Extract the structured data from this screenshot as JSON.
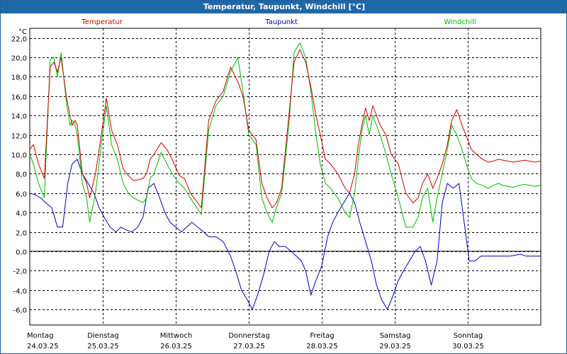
{
  "window": {
    "title": "Temperatur, Taupunkt, Windchill [°C]"
  },
  "chart_data": {
    "type": "line",
    "title": "Temperatur, Taupunkt, Windchill [°C]",
    "ylabel": "°C",
    "ylim": [
      -7.6,
      23
    ],
    "yticks": [
      "22,0",
      "20,0",
      "18,0",
      "16,0",
      "14,0",
      "12,0",
      "10,0",
      "8,0",
      "6,0",
      "4,0",
      "2,0",
      "0,0",
      "-2,0",
      "-4,0",
      "-6,0"
    ],
    "ytick_values": [
      22,
      20,
      18,
      16,
      14,
      12,
      10,
      8,
      6,
      4,
      2,
      0,
      -2,
      -4,
      -6
    ],
    "xlim": [
      0,
      7
    ],
    "days": [
      {
        "weekday": "Montag",
        "date": "24.03.25"
      },
      {
        "weekday": "Dienstag",
        "date": "25.03.25"
      },
      {
        "weekday": "Mittwoch",
        "date": "26.03.25"
      },
      {
        "weekday": "Donnerstag",
        "date": "27.03.25"
      },
      {
        "weekday": "Freitag",
        "date": "28.03.25"
      },
      {
        "weekday": "Samstag",
        "date": "29.03.25"
      },
      {
        "weekday": "Sonntag",
        "date": "30.03.25"
      }
    ],
    "grid": true,
    "legend_position": "top",
    "series": [
      {
        "name": "Temperatur",
        "color": "#cc0000",
        "x": [
          0,
          0.05,
          0.12,
          0.2,
          0.28,
          0.33,
          0.38,
          0.43,
          0.5,
          0.55,
          0.58,
          0.62,
          0.65,
          0.68,
          0.72,
          0.78,
          0.82,
          0.9,
          0.98,
          1.05,
          1.12,
          1.2,
          1.28,
          1.35,
          1.42,
          1.5,
          1.55,
          1.6,
          1.65,
          1.7,
          1.8,
          1.88,
          1.95,
          2.05,
          2.12,
          2.2,
          2.35,
          2.45,
          2.55,
          2.65,
          2.75,
          2.85,
          2.92,
          3.0,
          3.1,
          3.18,
          3.25,
          3.32,
          3.38,
          3.45,
          3.55,
          3.62,
          3.7,
          3.78,
          3.85,
          3.92,
          3.98,
          4.05,
          4.12,
          4.22,
          4.32,
          4.38,
          4.45,
          4.5,
          4.55,
          4.6,
          4.65,
          4.7,
          4.8,
          4.88,
          4.95,
          5.05,
          5.15,
          5.25,
          5.32,
          5.38,
          5.45,
          5.52,
          5.58,
          5.65,
          5.72,
          5.78,
          5.85,
          5.92,
          6.0,
          6.05,
          6.12,
          6.2,
          6.28,
          6.35,
          6.42,
          6.48,
          6.55,
          6.62,
          6.7,
          6.78,
          6.85,
          6.92,
          7.0
        ],
        "y": [
          10.5,
          11.0,
          9.0,
          7.5,
          19.0,
          19.5,
          18.5,
          20.0,
          16.0,
          14.0,
          13.0,
          13.5,
          13.0,
          11.0,
          8.0,
          7.0,
          5.5,
          8.0,
          12.0,
          15.8,
          12.5,
          11.0,
          8.5,
          7.8,
          7.3,
          7.4,
          7.5,
          8.0,
          9.5,
          10.0,
          11.2,
          10.5,
          9.5,
          7.8,
          7.5,
          6.0,
          4.5,
          13.5,
          15.5,
          16.5,
          19.0,
          17.5,
          16.0,
          12.5,
          11.5,
          7.0,
          5.5,
          4.5,
          5.0,
          6.5,
          14.0,
          19.5,
          20.8,
          19.5,
          17.0,
          14.0,
          12.0,
          9.5,
          9.0,
          8.0,
          6.5,
          6.0,
          8.0,
          11.0,
          13.0,
          14.8,
          13.5,
          15.0,
          13.0,
          12.0,
          10.0,
          9.0,
          6.0,
          5.0,
          5.5,
          7.0,
          8.0,
          6.5,
          7.5,
          9.0,
          11.0,
          13.5,
          14.6,
          13.0,
          11.5,
          10.5,
          10.0,
          9.5,
          9.2,
          9.3,
          9.5,
          9.4,
          9.3,
          9.2,
          9.3,
          9.4,
          9.3,
          9.2,
          9.3
        ]
      },
      {
        "name": "Taupunkt",
        "color": "#0000bb",
        "x": [
          0,
          0.08,
          0.15,
          0.22,
          0.3,
          0.38,
          0.45,
          0.52,
          0.58,
          0.65,
          0.72,
          0.8,
          0.88,
          0.95,
          1.02,
          1.1,
          1.18,
          1.25,
          1.32,
          1.4,
          1.48,
          1.55,
          1.62,
          1.7,
          1.78,
          1.85,
          1.92,
          2.0,
          2.08,
          2.15,
          2.22,
          2.3,
          2.38,
          2.45,
          2.55,
          2.65,
          2.75,
          2.82,
          2.9,
          2.98,
          3.05,
          3.12,
          3.2,
          3.28,
          3.35,
          3.42,
          3.5,
          3.58,
          3.65,
          3.72,
          3.78,
          3.85,
          3.92,
          4.0,
          4.08,
          4.15,
          4.22,
          4.3,
          4.38,
          4.45,
          4.52,
          4.6,
          4.68,
          4.75,
          4.82,
          4.9,
          4.98,
          5.05,
          5.12,
          5.2,
          5.28,
          5.35,
          5.42,
          5.5,
          5.58,
          5.65,
          5.72,
          5.8,
          5.88,
          5.95,
          6.02,
          6.1,
          6.18,
          6.25,
          6.32,
          6.38,
          6.45,
          6.52,
          6.58,
          6.65,
          6.72,
          6.8,
          6.88,
          6.95,
          7.0
        ],
        "y": [
          6.0,
          5.8,
          5.5,
          5.0,
          4.5,
          2.5,
          2.5,
          7.0,
          9.0,
          9.5,
          8.0,
          7.0,
          6.0,
          4.5,
          3.5,
          2.5,
          2.0,
          2.5,
          2.2,
          2.0,
          2.5,
          3.5,
          6.5,
          7.0,
          5.5,
          4.0,
          3.0,
          2.5,
          2.0,
          2.5,
          3.0,
          2.5,
          2.0,
          1.5,
          1.5,
          1.0,
          -0.5,
          -2.0,
          -4.0,
          -5.0,
          -6.0,
          -4.5,
          -2.5,
          0.0,
          1.0,
          0.5,
          0.5,
          0.0,
          -0.5,
          -1.0,
          -2.0,
          -4.5,
          -3.0,
          -1.5,
          1.5,
          3.0,
          4.0,
          5.0,
          6.0,
          5.0,
          3.0,
          1.0,
          -1.0,
          -3.5,
          -5.0,
          -6.0,
          -4.5,
          -3.0,
          -2.0,
          -1.0,
          0.0,
          0.5,
          -1.0,
          -3.5,
          -1.0,
          5.0,
          7.0,
          6.5,
          7.0,
          3.0,
          -1.0,
          -1.0,
          -0.5,
          -0.5,
          -0.5,
          -0.5,
          -0.5,
          -0.5,
          -0.5,
          -0.4,
          -0.3,
          -0.5,
          -0.5,
          -0.5,
          -0.5
        ]
      },
      {
        "name": "Windchill",
        "color": "#00bb00",
        "x": [
          0,
          0.05,
          0.12,
          0.2,
          0.28,
          0.33,
          0.38,
          0.43,
          0.5,
          0.55,
          0.58,
          0.62,
          0.65,
          0.68,
          0.72,
          0.78,
          0.82,
          0.9,
          0.98,
          1.05,
          1.12,
          1.2,
          1.28,
          1.35,
          1.42,
          1.5,
          1.55,
          1.6,
          1.65,
          1.7,
          1.8,
          1.88,
          1.95,
          2.05,
          2.12,
          2.2,
          2.35,
          2.45,
          2.55,
          2.65,
          2.75,
          2.85,
          2.92,
          3.0,
          3.1,
          3.18,
          3.25,
          3.32,
          3.38,
          3.45,
          3.55,
          3.62,
          3.7,
          3.78,
          3.85,
          3.92,
          3.98,
          4.05,
          4.12,
          4.22,
          4.32,
          4.38,
          4.45,
          4.5,
          4.55,
          4.6,
          4.65,
          4.7,
          4.8,
          4.88,
          4.95,
          5.05,
          5.15,
          5.25,
          5.32,
          5.38,
          5.45,
          5.52,
          5.58,
          5.65,
          5.72,
          5.78,
          5.85,
          5.92,
          6.0,
          6.05,
          6.12,
          6.2,
          6.28,
          6.35,
          6.42,
          6.48,
          6.55,
          6.62,
          6.7,
          6.78,
          6.85,
          6.92,
          7.0
        ],
        "y": [
          10.0,
          9.0,
          7.0,
          5.5,
          19.8,
          20.0,
          18.0,
          20.5,
          15.5,
          13.0,
          13.5,
          13.0,
          12.0,
          10.0,
          7.0,
          5.5,
          3.0,
          6.0,
          11.0,
          15.0,
          11.0,
          9.5,
          7.0,
          6.0,
          5.5,
          5.2,
          5.0,
          5.5,
          7.5,
          8.0,
          10.2,
          9.0,
          8.0,
          7.0,
          6.5,
          5.5,
          3.8,
          12.5,
          15.0,
          16.0,
          18.5,
          20.0,
          16.5,
          12.0,
          11.0,
          5.5,
          4.0,
          3.0,
          4.5,
          6.0,
          13.0,
          20.5,
          21.5,
          20.0,
          16.5,
          12.0,
          9.0,
          7.0,
          6.5,
          5.5,
          4.0,
          3.5,
          6.0,
          9.5,
          12.5,
          14.0,
          12.0,
          14.0,
          12.0,
          10.0,
          8.0,
          5.5,
          2.5,
          2.5,
          3.5,
          5.5,
          6.5,
          3.0,
          5.5,
          8.0,
          10.5,
          13.0,
          12.0,
          10.5,
          8.5,
          7.5,
          7.0,
          6.8,
          6.5,
          6.8,
          7.0,
          6.8,
          6.7,
          6.6,
          6.8,
          6.9,
          6.8,
          6.7,
          6.8
        ]
      }
    ]
  }
}
